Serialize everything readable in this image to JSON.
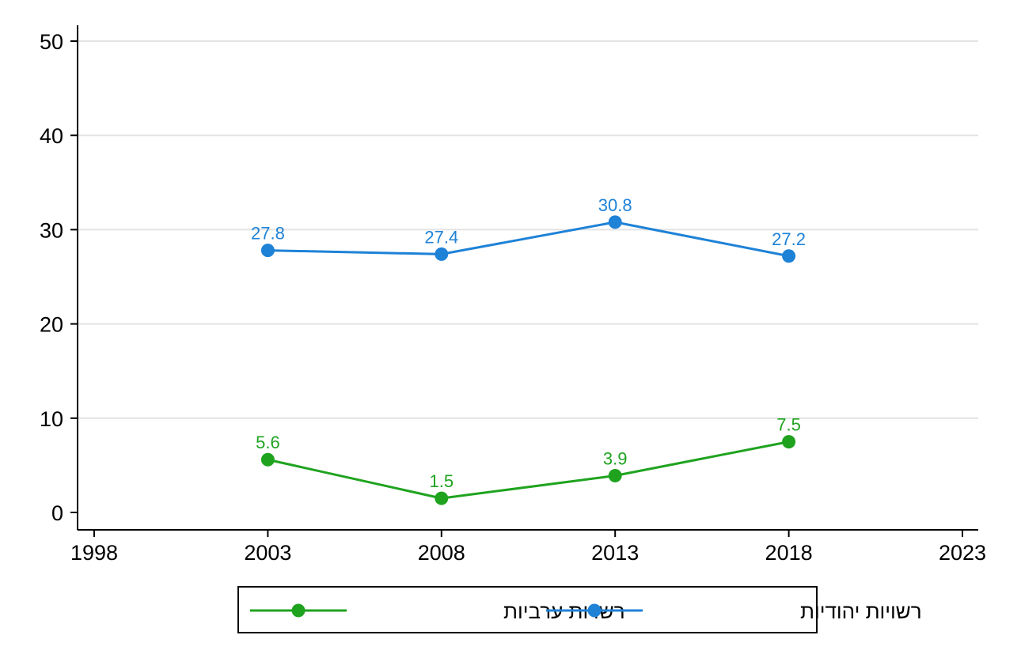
{
  "chart_data": {
    "type": "line",
    "title": "",
    "xlabel": "",
    "ylabel": "",
    "x": [
      2003,
      2008,
      2013,
      2018
    ],
    "xticks": [
      1998,
      2003,
      2008,
      2013,
      2018,
      2023
    ],
    "yticks": [
      0,
      10,
      20,
      30,
      40,
      50
    ],
    "xlim": [
      1998,
      2023
    ],
    "ylim": [
      0,
      50
    ],
    "grid": true,
    "legend_position": "bottom",
    "series": [
      {
        "name": "רשויות ערביות",
        "color": "#1fa31f",
        "values": [
          5.6,
          1.5,
          3.9,
          7.5
        ],
        "labels": [
          "5.6",
          "1.5",
          "3.9",
          "7.5"
        ]
      },
      {
        "name": "רשויות יהודיות",
        "color": "#1e82d7",
        "values": [
          27.8,
          27.4,
          30.8,
          27.2
        ],
        "labels": [
          "27.8",
          "27.4",
          "30.8",
          "27.2"
        ]
      }
    ]
  }
}
